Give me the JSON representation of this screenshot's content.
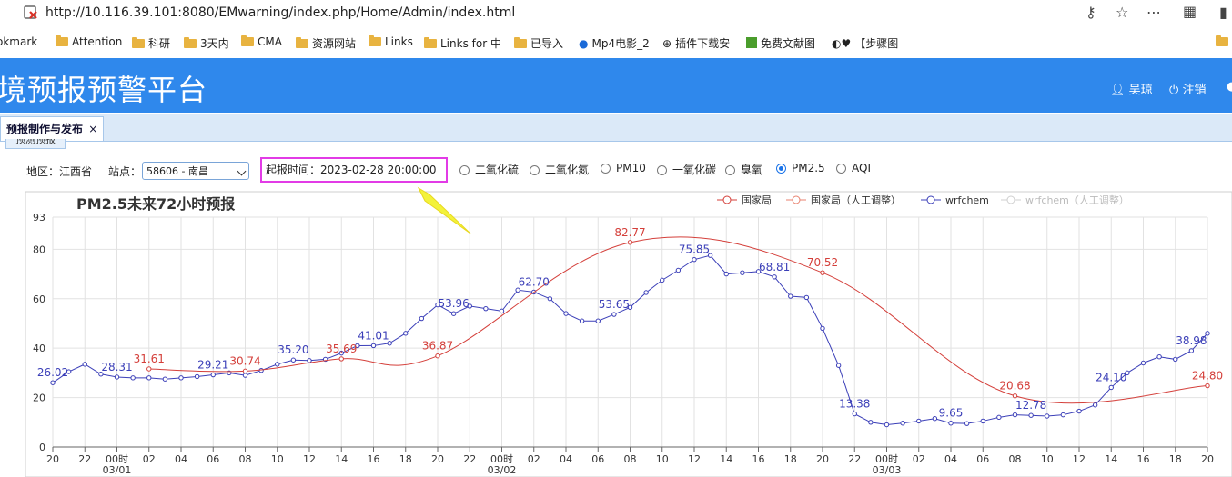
{
  "browser": {
    "url": "http://10.116.39.101:8080/EMwarning/index.php/Home/Admin/index.html",
    "bookmarks": [
      "okmark",
      "Attention",
      "科研",
      "3天内",
      "CMA",
      "资源网站",
      "Links",
      "Links for 中",
      "已导入",
      "Mp4电影_2",
      "插件下载安",
      "免费文献图",
      "【步骤图"
    ]
  },
  "header": {
    "title": "境预报预警平台",
    "user": "吴琼",
    "logout": "注销"
  },
  "tabs": {
    "main_tab": "预报制作与发布",
    "close": "×",
    "sub_tab": "预测预报"
  },
  "controls": {
    "region_label": "地区：",
    "region_value": "江西省",
    "station_label": "站点：",
    "station_value": "58606 - 南昌",
    "start_time_label": "起报时间：",
    "start_time_value": "2023-02-28 20:00:00",
    "pollutants": [
      {
        "label": "二氧化硫",
        "selected": false
      },
      {
        "label": "二氧化氮",
        "selected": false
      },
      {
        "label": "PM10",
        "selected": false
      },
      {
        "label": "一氧化碳",
        "selected": false
      },
      {
        "label": "臭氧",
        "selected": false
      },
      {
        "label": "PM2.5",
        "selected": true
      },
      {
        "label": "AQI",
        "selected": false
      }
    ]
  },
  "chart_data": {
    "type": "line",
    "title": "PM2.5未来72小时预报",
    "ylim": [
      0,
      93
    ],
    "yticks": [
      0,
      20,
      40,
      60,
      80,
      93
    ],
    "xlim": [
      0,
      72
    ],
    "x_tick_labels": [
      "20",
      "22",
      "00时",
      "02",
      "04",
      "06",
      "08",
      "10",
      "12",
      "14",
      "16",
      "18",
      "20",
      "22",
      "00时",
      "02",
      "04",
      "06",
      "08",
      "10",
      "12",
      "14",
      "16",
      "18",
      "20",
      "22",
      "00时",
      "02",
      "04",
      "06",
      "08",
      "10",
      "12",
      "14",
      "16",
      "18",
      "20"
    ],
    "date_labels": [
      {
        "x": 4,
        "label": "03/01"
      },
      {
        "x": 28,
        "label": "03/02"
      },
      {
        "x": 52,
        "label": "03/03"
      }
    ],
    "grid": true,
    "legend_position": "top-right",
    "series": [
      {
        "name": "国家局",
        "color": "#d43f3a",
        "smooth": true,
        "x": [
          6,
          12,
          18,
          24,
          36,
          48,
          60,
          72
        ],
        "values": [
          31.61,
          30.74,
          35.69,
          36.87,
          82.77,
          70.52,
          20.68,
          24.8
        ],
        "labels": [
          "31.61",
          "30.74",
          "35.69",
          "36.87",
          "82.77",
          "70.52",
          "20.68",
          "24.80"
        ]
      },
      {
        "name": "国家局（人工调整）",
        "color": "#e8826f",
        "x": [],
        "values": []
      },
      {
        "name": "wrfchem",
        "color": "#3b3fb8",
        "x": [
          0,
          1,
          2,
          3,
          4,
          5,
          6,
          7,
          8,
          9,
          10,
          11,
          12,
          13,
          14,
          15,
          16,
          17,
          18,
          19,
          20,
          21,
          22,
          23,
          24,
          25,
          26,
          27,
          28,
          29,
          30,
          31,
          32,
          33,
          34,
          35,
          36,
          37,
          38,
          39,
          40,
          41,
          42,
          43,
          44,
          45,
          46,
          47,
          48,
          49,
          50,
          51,
          52,
          53,
          54,
          55,
          56,
          57,
          58,
          59,
          60,
          61,
          62,
          63,
          64,
          65,
          66,
          67,
          68,
          69,
          70,
          71,
          72
        ],
        "values": [
          26.02,
          30.5,
          33.5,
          29.5,
          28.31,
          28.0,
          28.0,
          27.5,
          28.0,
          28.5,
          29.21,
          30.0,
          29.0,
          31.0,
          33.5,
          35.2,
          35.0,
          35.5,
          38.0,
          41.0,
          41.01,
          42.0,
          46.0,
          52.0,
          57.5,
          53.96,
          57.0,
          56.0,
          55.0,
          63.5,
          62.7,
          60.0,
          54.0,
          51.0,
          51.0,
          53.65,
          56.5,
          62.5,
          67.5,
          71.5,
          75.85,
          77.5,
          70.0,
          70.5,
          71.0,
          68.81,
          61.0,
          60.5,
          48.0,
          33.0,
          13.38,
          10.0,
          9.0,
          9.65,
          10.5,
          11.5,
          9.65,
          9.5,
          10.5,
          12.0,
          13.0,
          12.78,
          12.5,
          13.0,
          14.5,
          17.0,
          24.1,
          30.0,
          34.0,
          36.5,
          35.5,
          38.98,
          46.0
        ],
        "labels": {
          "0": "26.02",
          "4": "28.31",
          "10": "29.21",
          "15": "35.20",
          "20": "41.01",
          "25": "53.96",
          "30": "62.70",
          "35": "53.65",
          "40": "75.85",
          "45": "68.81",
          "50": "13.38",
          "56": "9.65",
          "61": "12.78",
          "66": "24.10",
          "71": "38.98"
        }
      },
      {
        "name": "wrfchem（人工调整）",
        "color": "#cfcfcf",
        "x": [],
        "values": []
      }
    ]
  },
  "colors": {
    "header_bg": "#2f88ec",
    "tab_bar_bg": "#dbe9f8",
    "highlight_box": "#e23be6",
    "arrow": "#f3f23a"
  }
}
